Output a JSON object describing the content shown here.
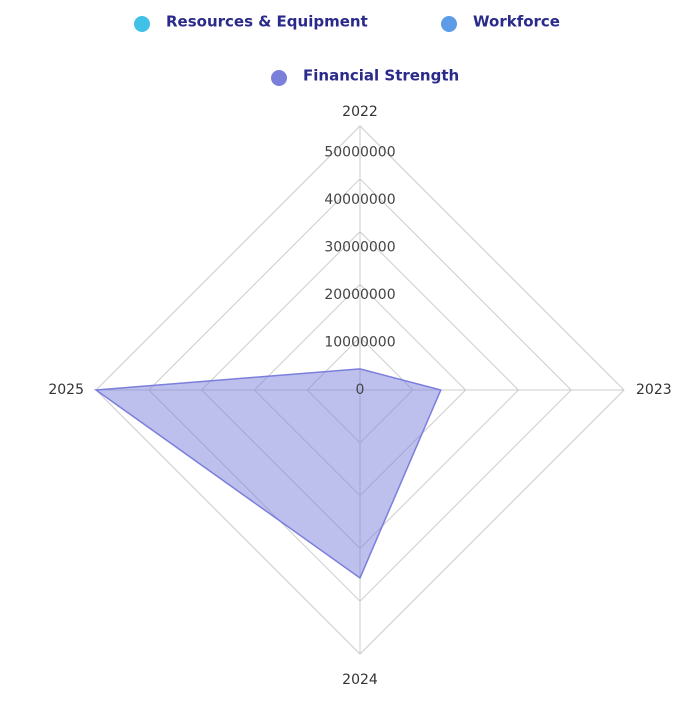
{
  "chart_data": {
    "type": "radar",
    "categories": [
      "2022",
      "2023",
      "2024",
      "2025"
    ],
    "series": [
      {
        "name": "Resources & Equipment",
        "color": "#3fc1e8",
        "values": [
          0,
          0,
          0,
          0
        ]
      },
      {
        "name": "Workforce",
        "color": "#5b9be8",
        "values": [
          0,
          0,
          0,
          0
        ]
      },
      {
        "name": "Financial Strength",
        "color": "#7b7fdc",
        "values": [
          4000000,
          15300000,
          35600000,
          50000000
        ]
      }
    ],
    "ylim": [
      0,
      50000000
    ],
    "yticks": [
      0,
      10000000,
      20000000,
      30000000,
      40000000,
      50000000
    ],
    "grid": true
  }
}
